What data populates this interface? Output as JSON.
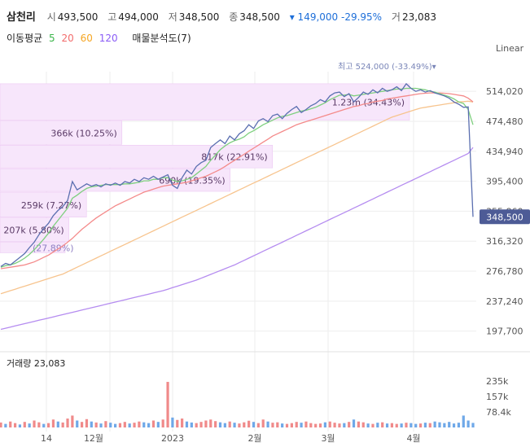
{
  "header": {
    "name": "삼천리",
    "open_label": "시",
    "open": "493,500",
    "high_label": "고",
    "high": "494,000",
    "low_label": "저",
    "low": "348,500",
    "close_label": "종",
    "close": "348,500",
    "change": "▾ 149,000 -29.95%",
    "volume_label": "거",
    "volume": "23,083"
  },
  "ma_legend": {
    "label": "이동평균",
    "periods": [
      {
        "text": "5",
        "color": "#3bb54a"
      },
      {
        "text": "20",
        "color": "#f26c6c"
      },
      {
        "text": "60",
        "color": "#f5a623"
      },
      {
        "text": "120",
        "color": "#8a5cf6"
      }
    ],
    "sales_label": "매물분석도(7)"
  },
  "scale_label": "Linear",
  "colors": {
    "price": "#5b6fb0",
    "ma5": "#7ed07e",
    "ma20": "#f48a8a",
    "ma60": "#f7c48e",
    "ma120": "#b58cf0",
    "profile": "#f7e6fb",
    "up": "#f08a8a",
    "down": "#6fa8e8"
  },
  "chart_data": {
    "type": "line",
    "price_axis": {
      "ticks": [
        "514,020",
        "474,480",
        "434,940",
        "395,400",
        "355,860",
        "316,320",
        "276,780",
        "237,240",
        "197,700"
      ],
      "ylim": [
        178000,
        540000
      ]
    },
    "x_ticks": [
      "14",
      "12월",
      "2023",
      "2월",
      "3월",
      "4월"
    ],
    "last_price_label": "348,500",
    "high_annotation": "최고 524,000 (-33.49%)▾",
    "volume_profile": [
      {
        "label": "1.23m (34.43%)",
        "high": 524000,
        "low": 475000,
        "pct": 34.43
      },
      {
        "label": "366k (10.25%)",
        "high": 475000,
        "low": 443000,
        "pct": 10.25
      },
      {
        "label": "817k (22.91%)",
        "high": 443000,
        "low": 412000,
        "pct": 22.91
      },
      {
        "label": "690k (19.35%)",
        "high": 412000,
        "low": 381000,
        "pct": 19.35
      },
      {
        "label": "259k (7.27%)",
        "high": 381000,
        "low": 347000,
        "pct": 7.27
      },
      {
        "label": "207k (5.80%)",
        "high": 347000,
        "low": 315000,
        "pct": 5.8
      },
      {
        "label": "(27.89%)",
        "high": 315000,
        "low": 300000,
        "pct": 0
      }
    ],
    "price": [
      283000,
      287000,
      285000,
      290000,
      295000,
      300000,
      308000,
      315000,
      325000,
      333000,
      340000,
      350000,
      357000,
      362000,
      370000,
      395000,
      384000,
      388000,
      392000,
      389000,
      391000,
      388000,
      392000,
      390000,
      393000,
      390000,
      395000,
      393000,
      398000,
      395000,
      400000,
      398000,
      402000,
      398000,
      401000,
      404000,
      390000,
      386000,
      400000,
      410000,
      405000,
      415000,
      420000,
      423000,
      440000,
      445000,
      450000,
      445000,
      455000,
      450000,
      458000,
      462000,
      470000,
      465000,
      475000,
      478000,
      474000,
      482000,
      484000,
      478000,
      485000,
      490000,
      494000,
      486000,
      490000,
      495000,
      498000,
      503000,
      500000,
      508000,
      512000,
      513000,
      507000,
      511000,
      500000,
      506000,
      513000,
      510000,
      516000,
      512000,
      518000,
      514000,
      516000,
      520000,
      515000,
      524000,
      518000,
      514000,
      516000,
      513000,
      515000,
      512000,
      510000,
      508000,
      505000,
      500000,
      497000,
      493000,
      493500,
      348500
    ],
    "ma5": [
      282000,
      284000,
      285000,
      287000,
      290000,
      294000,
      299000,
      305000,
      312000,
      319000,
      327000,
      336000,
      344000,
      352000,
      360000,
      373000,
      377000,
      382000,
      386000,
      388000,
      389000,
      390000,
      391000,
      391000,
      391000,
      391000,
      392000,
      392000,
      393000,
      394000,
      396000,
      396000,
      398000,
      398000,
      400000,
      400000,
      397000,
      395000,
      396000,
      398000,
      400000,
      405000,
      410000,
      415000,
      423000,
      430000,
      437000,
      442000,
      446000,
      449000,
      451000,
      454000,
      459000,
      462000,
      466000,
      470000,
      473000,
      476000,
      479000,
      481000,
      482000,
      484000,
      486000,
      488000,
      489000,
      491000,
      493000,
      496000,
      499000,
      503000,
      506000,
      509000,
      509000,
      510000,
      508000,
      509000,
      510000,
      511000,
      512000,
      513000,
      514000,
      515000,
      516000,
      517000,
      517000,
      518000,
      518000,
      518000,
      517000,
      516000,
      514000,
      513000,
      511000,
      509000,
      507000,
      504000,
      500000,
      498000,
      490000,
      470000
    ],
    "ma20": [
      280000,
      281000,
      282000,
      283000,
      284000,
      285000,
      287000,
      289000,
      292000,
      295000,
      298000,
      302000,
      306000,
      310000,
      315000,
      320000,
      326000,
      332000,
      337000,
      342000,
      347000,
      351000,
      355000,
      359000,
      363000,
      366000,
      369000,
      372000,
      375000,
      378000,
      381000,
      383000,
      385000,
      387000,
      389000,
      390000,
      391000,
      392000,
      393000,
      394000,
      396000,
      398000,
      400000,
      402000,
      405000,
      408000,
      411000,
      415000,
      419000,
      423000,
      427000,
      431000,
      435000,
      439000,
      443000,
      447000,
      451000,
      455000,
      458000,
      461000,
      464000,
      467000,
      470000,
      472000,
      474000,
      476000,
      478000,
      480000,
      482000,
      484000,
      486000,
      488000,
      490000,
      492000,
      494000,
      495000,
      497000,
      498000,
      500000,
      501000,
      502000,
      504000,
      505000,
      506000,
      507000,
      508000,
      509000,
      510000,
      511000,
      511500,
      512000,
      512000,
      512000,
      511500,
      511000,
      510000,
      509000,
      508000,
      505000,
      500000
    ],
    "ma60": [
      247000,
      249000,
      251000,
      253000,
      255000,
      257000,
      259000,
      261000,
      263000,
      265000,
      267000,
      269000,
      271000,
      273000,
      276000,
      279000,
      282000,
      285000,
      288000,
      291000,
      294000,
      297000,
      300000,
      303000,
      306000,
      309000,
      312000,
      315000,
      318000,
      321000,
      324000,
      327000,
      330000,
      333000,
      336000,
      339000,
      342000,
      345000,
      348000,
      351000,
      354000,
      357000,
      360000,
      363000,
      366000,
      369000,
      372000,
      375000,
      378000,
      381000,
      384000,
      387000,
      390000,
      393000,
      396000,
      399000,
      402000,
      405000,
      408000,
      411000,
      414000,
      417000,
      420000,
      423000,
      426000,
      429000,
      432000,
      435000,
      438000,
      441000,
      444000,
      447000,
      450000,
      453000,
      456000,
      459000,
      462000,
      465000,
      468000,
      471000,
      474000,
      477000,
      480000,
      482000,
      484000,
      486000,
      488000,
      490000,
      492000,
      493000,
      494000,
      495000,
      496000,
      497000,
      498000,
      499000,
      500000,
      500500,
      501000,
      500000
    ],
    "ma120": [
      200000,
      201500,
      203000,
      204500,
      206000,
      207500,
      209000,
      210500,
      212000,
      213500,
      215000,
      216500,
      218000,
      219500,
      221000,
      222500,
      224000,
      225500,
      227000,
      228500,
      230000,
      231500,
      233000,
      234500,
      236000,
      237500,
      239000,
      240500,
      242000,
      243500,
      245000,
      246500,
      248000,
      249500,
      251000,
      253000,
      255000,
      257000,
      259000,
      261000,
      263000,
      265000,
      267500,
      270000,
      272500,
      275000,
      277500,
      280000,
      282500,
      285000,
      288000,
      291000,
      294000,
      297000,
      300000,
      303000,
      306000,
      309000,
      312000,
      315000,
      318000,
      321000,
      324000,
      327000,
      330000,
      333000,
      336000,
      339000,
      342000,
      345000,
      348000,
      351000,
      354000,
      357000,
      360000,
      363000,
      366000,
      369000,
      372000,
      375000,
      378000,
      381000,
      384000,
      387000,
      390000,
      393000,
      396000,
      399000,
      402000,
      405000,
      408000,
      411000,
      414000,
      417000,
      420000,
      423000,
      426000,
      429000,
      432000,
      440000
    ],
    "volume": {
      "label": "거래량",
      "value": "23,083",
      "ticks": [
        "235k",
        "157k",
        "78.4k"
      ],
      "ylim": [
        0,
        300000
      ],
      "values": [
        25000,
        18000,
        30000,
        22000,
        15000,
        28000,
        20000,
        35000,
        26000,
        18000,
        22000,
        40000,
        30000,
        25000,
        45000,
        60000,
        35000,
        28000,
        42000,
        30000,
        25000,
        20000,
        32000,
        24000,
        18000,
        22000,
        28000,
        20000,
        24000,
        30000,
        26000,
        22000,
        35000,
        28000,
        40000,
        230000,
        50000,
        38000,
        45000,
        30000,
        25000,
        22000,
        28000,
        35000,
        40000,
        32000,
        26000,
        22000,
        30000,
        24000,
        20000,
        26000,
        34000,
        28000,
        22000,
        40000,
        30000,
        24000,
        26000,
        20000,
        18000,
        22000,
        28000,
        24000,
        30000,
        22000,
        18000,
        20000,
        26000,
        30000,
        24000,
        20000,
        22000,
        28000,
        40000,
        30000,
        26000,
        20000,
        18000,
        24000,
        26000,
        20000,
        22000,
        18000,
        20000,
        24000,
        22000,
        18000,
        20000,
        24000,
        22000,
        30000,
        26000,
        22000,
        28000,
        20000,
        24000,
        60000,
        35000,
        23083
      ],
      "up": [
        1,
        0,
        1,
        1,
        0,
        1,
        0,
        1,
        1,
        0,
        1,
        1,
        0,
        1,
        1,
        1,
        0,
        1,
        1,
        0,
        1,
        0,
        1,
        0,
        0,
        1,
        1,
        0,
        1,
        1,
        0,
        0,
        1,
        0,
        1,
        1,
        0,
        1,
        1,
        0,
        0,
        1,
        1,
        1,
        1,
        1,
        0,
        0,
        1,
        0,
        1,
        1,
        1,
        0,
        1,
        1,
        0,
        1,
        1,
        0,
        1,
        1,
        1,
        0,
        1,
        1,
        1,
        1,
        0,
        1,
        1,
        1,
        0,
        1,
        0,
        1,
        1,
        0,
        1,
        0,
        1,
        0,
        1,
        1,
        0,
        1,
        0,
        0,
        1,
        0,
        1,
        0,
        0,
        0,
        0,
        0,
        0,
        0,
        0,
        0
      ]
    }
  }
}
